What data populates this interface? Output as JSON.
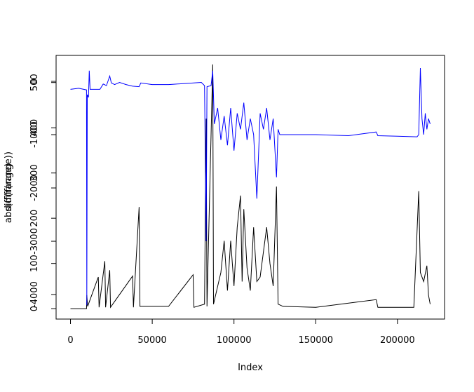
{
  "chart_data": {
    "type": "line",
    "xlabel": "Index",
    "ylabel": "abs(diff(range))",
    "y2label": "diff(range)",
    "xlim": [
      -8800,
      228800
    ],
    "xticks": [
      0,
      50000,
      100000,
      150000,
      200000
    ],
    "ylim": [
      -23,
      560
    ],
    "yticks": [
      0,
      100,
      200,
      300,
      400,
      500
    ],
    "y2lim": [
      -4460,
      487
    ],
    "y2ticks": [
      0,
      -1000,
      -2000,
      -3000,
      -4000
    ],
    "series": [
      {
        "color": "#000000",
        "x": [
          0,
          9800,
          10000,
          10500,
          17000,
          17500,
          21000,
          21500,
          24000,
          24500,
          38000,
          38500,
          42000,
          42500,
          60000,
          75000,
          75500,
          82000,
          83000,
          83500,
          87000,
          87500,
          92000,
          94000,
          96000,
          98000,
          100000,
          102000,
          104000,
          105000,
          106000,
          108000,
          110000,
          112000,
          114000,
          116000,
          120000,
          122000,
          124000,
          126000,
          127000,
          130000,
          150000,
          187000,
          188000,
          210000,
          213000,
          214000,
          216000,
          218000,
          219000,
          220000
        ],
        "values": [
          0,
          0,
          30,
          5,
          70,
          3,
          105,
          3,
          85,
          3,
          72,
          3,
          225,
          5,
          5,
          75,
          3,
          10,
          420,
          5,
          540,
          10,
          80,
          150,
          40,
          150,
          50,
          180,
          250,
          60,
          220,
          90,
          40,
          180,
          60,
          70,
          180,
          100,
          50,
          270,
          10,
          5,
          3,
          20,
          3,
          3,
          260,
          80,
          60,
          95,
          30,
          10
        ]
      },
      {
        "color": "#0000ff",
        "axis": "y2",
        "x": [
          0,
          5000,
          9800,
          10000,
          10300,
          11000,
          11500,
          12000,
          18000,
          20000,
          22000,
          24000,
          25000,
          27000,
          30000,
          34000,
          38000,
          42000,
          43000,
          50000,
          60000,
          70000,
          80000,
          82000,
          83000,
          83500,
          86000,
          87000,
          88000,
          90000,
          92000,
          94000,
          96000,
          98000,
          100000,
          102000,
          104000,
          106000,
          108000,
          110000,
          112000,
          114000,
          116000,
          118000,
          120000,
          122000,
          124000,
          126000,
          127000,
          128000,
          150000,
          170000,
          187000,
          188000,
          200000,
          212000,
          213000,
          214000,
          215000,
          216000,
          217000,
          218000,
          219000,
          220000
        ],
        "values": [
          -150,
          -130,
          -160,
          -4200,
          -250,
          -300,
          200,
          -150,
          -150,
          -50,
          -80,
          100,
          -30,
          -60,
          -20,
          -60,
          -90,
          -100,
          -30,
          -60,
          -60,
          -40,
          -20,
          -80,
          -3000,
          -100,
          -80,
          200,
          -800,
          -500,
          -1100,
          -650,
          -1200,
          -500,
          -1300,
          -600,
          -900,
          -400,
          -1100,
          -700,
          -1000,
          -2200,
          -600,
          -900,
          -500,
          -1100,
          -700,
          -1800,
          -900,
          -1000,
          -1000,
          -1020,
          -950,
          -1020,
          -1030,
          -1040,
          -1000,
          250,
          -700,
          -1000,
          -600,
          -900,
          -700,
          -800
        ]
      }
    ]
  }
}
